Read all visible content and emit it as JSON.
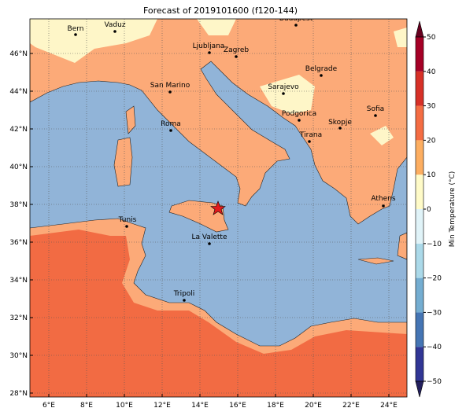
{
  "title": "Forecast of 2019101600 (f120-144)",
  "map": {
    "xticks": [
      {
        "value": 6,
        "label": "6°E"
      },
      {
        "value": 8,
        "label": "8°E"
      },
      {
        "value": 10,
        "label": "10°E"
      },
      {
        "value": 12,
        "label": "12°E"
      },
      {
        "value": 14,
        "label": "14°E"
      },
      {
        "value": 16,
        "label": "16°E"
      },
      {
        "value": 18,
        "label": "18°E"
      },
      {
        "value": 20,
        "label": "20°E"
      },
      {
        "value": 22,
        "label": "22°E"
      },
      {
        "value": 24,
        "label": "24°E"
      }
    ],
    "yticks": [
      {
        "value": 28,
        "label": "28°N"
      },
      {
        "value": 30,
        "label": "30°N"
      },
      {
        "value": 32,
        "label": "32°N"
      },
      {
        "value": 34,
        "label": "34°N"
      },
      {
        "value": 36,
        "label": "36°N"
      },
      {
        "value": 38,
        "label": "38°N"
      },
      {
        "value": 40,
        "label": "40°N"
      },
      {
        "value": 42,
        "label": "42°N"
      },
      {
        "value": 44,
        "label": "44°N"
      },
      {
        "value": 46,
        "label": "46°N"
      }
    ],
    "grid": true,
    "cities": [
      "Bern",
      "Vaduz",
      "Budapest",
      "Ljubljana",
      "Zagreb",
      "San Marino",
      "Belgrade",
      "Sarajevo",
      "Sofia",
      "Podgorica",
      "Skopje",
      "Roma",
      "Tirana",
      "Athens",
      "Tunis",
      "La Valette",
      "Tripoli"
    ]
  },
  "colorbar": {
    "label": "Min Temperature (°C)",
    "ticks": [
      {
        "value": -50,
        "label": "−50"
      },
      {
        "value": -40,
        "label": "−40"
      },
      {
        "value": -30,
        "label": "−30"
      },
      {
        "value": -20,
        "label": "−20"
      },
      {
        "value": -10,
        "label": "−10"
      },
      0,
      10,
      20,
      30,
      40,
      50
    ],
    "colors": [
      "#313695",
      "#4575b4",
      "#74add1",
      "#abd9e9",
      "#e0f3f8",
      "#fffbc8",
      "#fdae61",
      "#f46d43",
      "#d73027",
      "#a50026"
    ],
    "under": "#23205e",
    "over": "#67001f"
  }
}
